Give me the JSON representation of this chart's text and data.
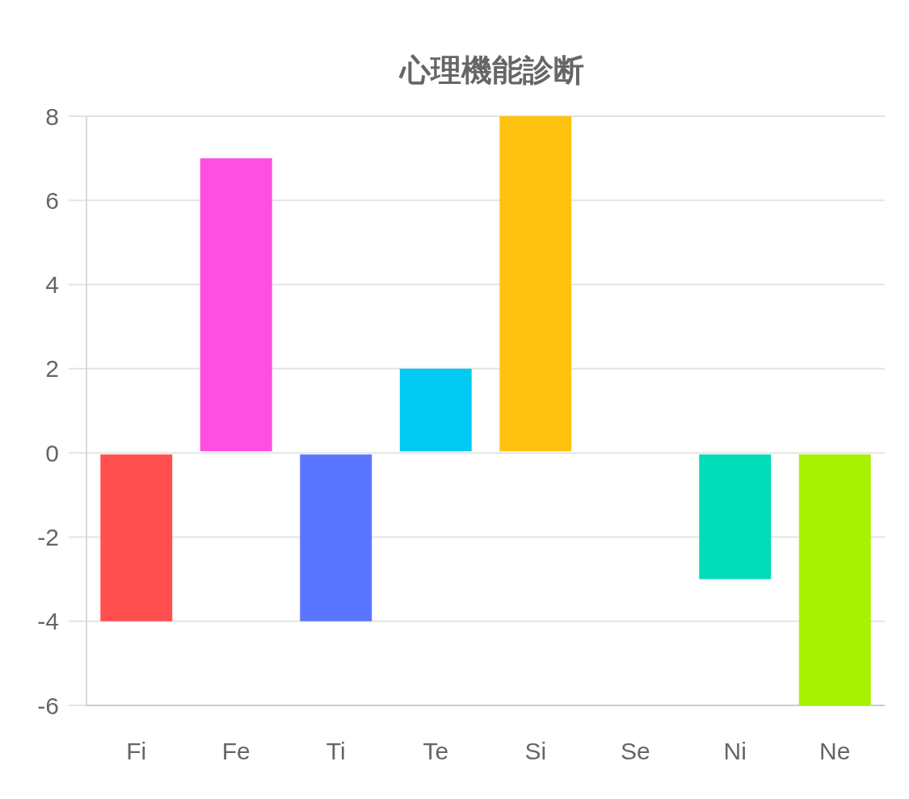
{
  "chart_data": {
    "type": "bar",
    "title": "心理機能診断",
    "categories": [
      "Fi",
      "Fe",
      "Ti",
      "Te",
      "Si",
      "Se",
      "Ni",
      "Ne"
    ],
    "values": [
      -4,
      7,
      -4,
      2,
      8,
      0,
      -3,
      -6
    ],
    "colors": [
      "#ff4f4f",
      "#ff4fe1",
      "#5a75ff",
      "#00c9f2",
      "#ffc20f",
      null,
      "#00dbb8",
      "#a6f200"
    ],
    "ylim": [
      -6,
      8
    ],
    "yticks": [
      -6,
      -4,
      -2,
      0,
      2,
      4,
      6,
      8
    ],
    "grid": "y"
  }
}
